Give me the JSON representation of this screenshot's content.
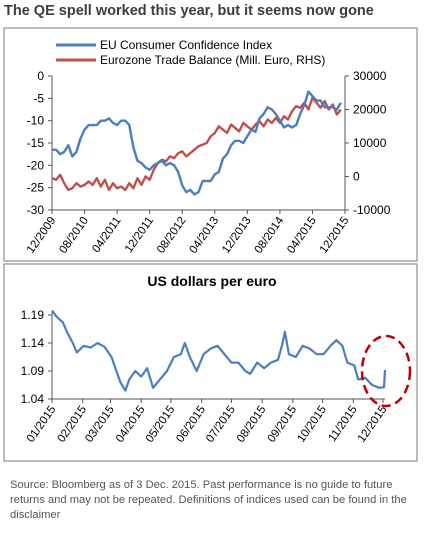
{
  "title": "The QE spell worked this year, but it seems now gone",
  "source_note": "Source: Bloomberg as of 3 Dec. 2015. Past performance is no guide to future returns and may not be repeated. Definitions of indices used can be found in the disclaimer",
  "colors": {
    "confidence": "#4a7ec2",
    "trade": "#c0504d",
    "usd": "#4a7ec2",
    "highlight_circle": "#c00000",
    "border": "#7a7a7a"
  },
  "chart_data": [
    {
      "type": "line",
      "title": "",
      "x_tick_labels": [
        "12/2009",
        "08/2010",
        "04/2011",
        "12/2011",
        "08/2012",
        "04/2013",
        "12/2013",
        "08/2014",
        "04/2015",
        "12/2015"
      ],
      "y_left": {
        "lim": [
          -30,
          0
        ],
        "ticks": [
          0,
          -5,
          -10,
          -15,
          -20,
          -25,
          -30
        ]
      },
      "y_right": {
        "lim": [
          -10000,
          30000
        ],
        "ticks": [
          30000,
          20000,
          10000,
          0,
          -10000
        ]
      },
      "legend_position": "top",
      "x_range": [
        "2009-12",
        "2015-12"
      ],
      "series": [
        {
          "name": "EU Consumer Confidence Index",
          "axis": "left",
          "points": [
            [
              "2009-12",
              -16.5
            ],
            [
              "2010-01",
              -16.5
            ],
            [
              "2010-02",
              -17.5
            ],
            [
              "2010-03",
              -17
            ],
            [
              "2010-04",
              -15.5
            ],
            [
              "2010-05",
              -18
            ],
            [
              "2010-06",
              -17
            ],
            [
              "2010-07",
              -14
            ],
            [
              "2010-08",
              -12
            ],
            [
              "2010-09",
              -11
            ],
            [
              "2010-10",
              -11
            ],
            [
              "2010-11",
              -11
            ],
            [
              "2010-12",
              -10
            ],
            [
              "2011-01",
              -10
            ],
            [
              "2011-02",
              -9.5
            ],
            [
              "2011-03",
              -10.5
            ],
            [
              "2011-04",
              -11
            ],
            [
              "2011-05",
              -10
            ],
            [
              "2011-06",
              -10
            ],
            [
              "2011-07",
              -11
            ],
            [
              "2011-08",
              -16
            ],
            [
              "2011-09",
              -19
            ],
            [
              "2011-10",
              -19.5
            ],
            [
              "2011-11",
              -20.5
            ],
            [
              "2011-12",
              -21
            ],
            [
              "2012-01",
              -20
            ],
            [
              "2012-02",
              -19.5
            ],
            [
              "2012-03",
              -19
            ],
            [
              "2012-04",
              -20
            ],
            [
              "2012-05",
              -19.5
            ],
            [
              "2012-06",
              -20
            ],
            [
              "2012-07",
              -21.5
            ],
            [
              "2012-08",
              -24.5
            ],
            [
              "2012-09",
              -26
            ],
            [
              "2012-10",
              -25.5
            ],
            [
              "2012-11",
              -26.5
            ],
            [
              "2012-12",
              -26
            ],
            [
              "2013-01",
              -23.5
            ],
            [
              "2013-02",
              -23.5
            ],
            [
              "2013-03",
              -23.5
            ],
            [
              "2013-04",
              -22
            ],
            [
              "2013-05",
              -21.5
            ],
            [
              "2013-06",
              -18.5
            ],
            [
              "2013-07",
              -17.5
            ],
            [
              "2013-08",
              -15.5
            ],
            [
              "2013-09",
              -14.5
            ],
            [
              "2013-10",
              -14.5
            ],
            [
              "2013-11",
              -15
            ],
            [
              "2013-12",
              -13.5
            ],
            [
              "2014-01",
              -12
            ],
            [
              "2014-02",
              -12.5
            ],
            [
              "2014-03",
              -9.5
            ],
            [
              "2014-04",
              -8.5
            ],
            [
              "2014-05",
              -7
            ],
            [
              "2014-06",
              -7.5
            ],
            [
              "2014-07",
              -8.5
            ],
            [
              "2014-08",
              -10
            ],
            [
              "2014-09",
              -11.5
            ],
            [
              "2014-10",
              -11
            ],
            [
              "2014-11",
              -11.5
            ],
            [
              "2014-12",
              -11
            ],
            [
              "2015-01",
              -8.5
            ],
            [
              "2015-02",
              -6.5
            ],
            [
              "2015-03",
              -3.5
            ],
            [
              "2015-04",
              -4.5
            ],
            [
              "2015-05",
              -5.5
            ],
            [
              "2015-06",
              -5.5
            ],
            [
              "2015-07",
              -7
            ],
            [
              "2015-08",
              -7
            ],
            [
              "2015-09",
              -7
            ],
            [
              "2015-10",
              -7.5
            ],
            [
              "2015-11",
              -6
            ]
          ]
        },
        {
          "name": "Eurozone Trade Balance (Mill. Euro, RHS)",
          "axis": "right",
          "points": [
            [
              "2009-12",
              -500
            ],
            [
              "2010-01",
              -1000
            ],
            [
              "2010-02",
              500
            ],
            [
              "2010-03",
              -2000
            ],
            [
              "2010-04",
              -4000
            ],
            [
              "2010-05",
              -3500
            ],
            [
              "2010-06",
              -2000
            ],
            [
              "2010-07",
              -3000
            ],
            [
              "2010-08",
              -2500
            ],
            [
              "2010-09",
              -1500
            ],
            [
              "2010-10",
              -2500
            ],
            [
              "2010-11",
              -500
            ],
            [
              "2010-12",
              -3000
            ],
            [
              "2011-01",
              -1000
            ],
            [
              "2011-02",
              -4000
            ],
            [
              "2011-03",
              -2000
            ],
            [
              "2011-04",
              -3500
            ],
            [
              "2011-05",
              -3000
            ],
            [
              "2011-06",
              -4000
            ],
            [
              "2011-07",
              -2000
            ],
            [
              "2011-08",
              -3500
            ],
            [
              "2011-09",
              -500
            ],
            [
              "2011-10",
              -2500
            ],
            [
              "2011-11",
              0
            ],
            [
              "2011-12",
              -1000
            ],
            [
              "2012-01",
              2000
            ],
            [
              "2012-02",
              4000
            ],
            [
              "2012-03",
              5000
            ],
            [
              "2012-04",
              4500
            ],
            [
              "2012-05",
              6000
            ],
            [
              "2012-06",
              5500
            ],
            [
              "2012-07",
              7000
            ],
            [
              "2012-08",
              7500
            ],
            [
              "2012-09",
              6000
            ],
            [
              "2012-10",
              7000
            ],
            [
              "2012-11",
              8000
            ],
            [
              "2012-12",
              9000
            ],
            [
              "2013-01",
              9500
            ],
            [
              "2013-02",
              10000
            ],
            [
              "2013-03",
              12000
            ],
            [
              "2013-04",
              13000
            ],
            [
              "2013-05",
              15000
            ],
            [
              "2013-06",
              14000
            ],
            [
              "2013-07",
              13000
            ],
            [
              "2013-08",
              15500
            ],
            [
              "2013-09",
              14500
            ],
            [
              "2013-10",
              13500
            ],
            [
              "2013-11",
              16000
            ],
            [
              "2013-12",
              15000
            ],
            [
              "2014-01",
              14000
            ],
            [
              "2014-02",
              15500
            ],
            [
              "2014-03",
              16500
            ],
            [
              "2014-04",
              15000
            ],
            [
              "2014-05",
              17000
            ],
            [
              "2014-06",
              16000
            ],
            [
              "2014-07",
              17500
            ],
            [
              "2014-08",
              16000
            ],
            [
              "2014-09",
              18000
            ],
            [
              "2014-10",
              17000
            ],
            [
              "2014-11",
              19500
            ],
            [
              "2014-12",
              21000
            ],
            [
              "2015-01",
              20500
            ],
            [
              "2015-02",
              22000
            ],
            [
              "2015-03",
              20000
            ],
            [
              "2015-04",
              23500
            ],
            [
              "2015-05",
              22000
            ],
            [
              "2015-06",
              20500
            ],
            [
              "2015-07",
              22500
            ],
            [
              "2015-08",
              20000
            ],
            [
              "2015-09",
              21500
            ],
            [
              "2015-10",
              18500
            ],
            [
              "2015-11",
              20000
            ]
          ]
        }
      ]
    },
    {
      "type": "line",
      "title": "US dollars per euro",
      "x_tick_labels": [
        "01/2015",
        "02/2015",
        "03/2015",
        "04/2015",
        "05/2015",
        "06/2015",
        "07/2015",
        "08/2015",
        "09/2015",
        "10/2015",
        "11/2015",
        "12/2015"
      ],
      "y_axis": {
        "lim": [
          1.04,
          1.19
        ],
        "ticks": [
          1.19,
          1.14,
          1.09,
          1.04
        ]
      },
      "x_range": [
        "2015-01-01",
        "2015-12-03"
      ],
      "series": [
        {
          "name": "",
          "points": [
            [
              "2015-01-01",
              1.198
            ],
            [
              "2015-01-06",
              1.186
            ],
            [
              "2015-01-12",
              1.177
            ],
            [
              "2015-01-16",
              1.16
            ],
            [
              "2015-01-22",
              1.14
            ],
            [
              "2015-01-26",
              1.123
            ],
            [
              "2015-02-02",
              1.135
            ],
            [
              "2015-02-09",
              1.132
            ],
            [
              "2015-02-16",
              1.14
            ],
            [
              "2015-02-23",
              1.133
            ],
            [
              "2015-03-02",
              1.115
            ],
            [
              "2015-03-06",
              1.095
            ],
            [
              "2015-03-11",
              1.07
            ],
            [
              "2015-03-16",
              1.055
            ],
            [
              "2015-03-20",
              1.075
            ],
            [
              "2015-03-26",
              1.09
            ],
            [
              "2015-04-01",
              1.08
            ],
            [
              "2015-04-07",
              1.095
            ],
            [
              "2015-04-13",
              1.06
            ],
            [
              "2015-04-20",
              1.075
            ],
            [
              "2015-04-27",
              1.09
            ],
            [
              "2015-05-04",
              1.115
            ],
            [
              "2015-05-11",
              1.12
            ],
            [
              "2015-05-15",
              1.14
            ],
            [
              "2015-05-20",
              1.115
            ],
            [
              "2015-05-27",
              1.09
            ],
            [
              "2015-06-03",
              1.12
            ],
            [
              "2015-06-10",
              1.13
            ],
            [
              "2015-06-17",
              1.135
            ],
            [
              "2015-06-24",
              1.12
            ],
            [
              "2015-07-01",
              1.105
            ],
            [
              "2015-07-08",
              1.105
            ],
            [
              "2015-07-15",
              1.09
            ],
            [
              "2015-07-20",
              1.085
            ],
            [
              "2015-07-27",
              1.105
            ],
            [
              "2015-08-03",
              1.095
            ],
            [
              "2015-08-10",
              1.105
            ],
            [
              "2015-08-17",
              1.11
            ],
            [
              "2015-08-21",
              1.135
            ],
            [
              "2015-08-24",
              1.16
            ],
            [
              "2015-08-28",
              1.12
            ],
            [
              "2015-09-04",
              1.115
            ],
            [
              "2015-09-11",
              1.135
            ],
            [
              "2015-09-18",
              1.13
            ],
            [
              "2015-09-25",
              1.12
            ],
            [
              "2015-10-02",
              1.12
            ],
            [
              "2015-10-09",
              1.135
            ],
            [
              "2015-10-15",
              1.145
            ],
            [
              "2015-10-21",
              1.135
            ],
            [
              "2015-10-26",
              1.105
            ],
            [
              "2015-11-02",
              1.1
            ],
            [
              "2015-11-06",
              1.075
            ],
            [
              "2015-11-13",
              1.078
            ],
            [
              "2015-11-20",
              1.065
            ],
            [
              "2015-11-27",
              1.06
            ],
            [
              "2015-12-02",
              1.061
            ],
            [
              "2015-12-03",
              1.092
            ]
          ]
        }
      ]
    }
  ]
}
